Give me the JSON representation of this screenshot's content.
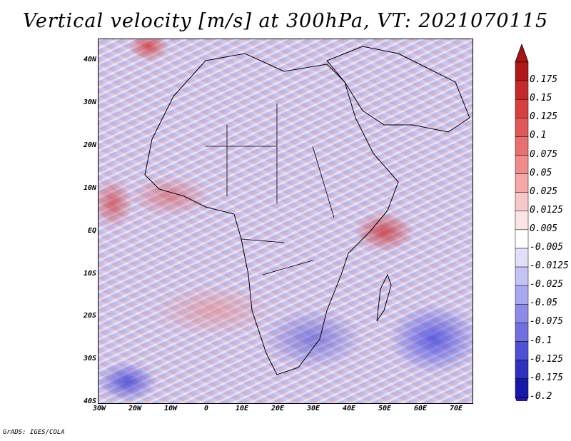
{
  "title": "Vertical velocity [m/s] at 300hPa, VT: 2021070115",
  "footer": "GrADS: IGES/COLA",
  "map": {
    "lat_labels": [
      "40N",
      "30N",
      "20N",
      "10N",
      "EQ",
      "10S",
      "20S",
      "30S",
      "40S"
    ],
    "lon_labels": [
      "30W",
      "20W",
      "10W",
      "0",
      "10E",
      "20E",
      "30E",
      "40E",
      "50E",
      "60E",
      "70E"
    ]
  },
  "colorbar": {
    "levels": [
      {
        "label": "0.175",
        "color": "#b01818"
      },
      {
        "label": "0.15",
        "color": "#c42a2a"
      },
      {
        "label": "0.125",
        "color": "#d84040"
      },
      {
        "label": "0.1",
        "color": "#e05858"
      },
      {
        "label": "0.075",
        "color": "#e87070"
      },
      {
        "label": "0.05",
        "color": "#f08c8c"
      },
      {
        "label": "0.025",
        "color": "#f4a8a8"
      },
      {
        "label": "0.0125",
        "color": "#f8c8c8"
      },
      {
        "label": "0.005",
        "color": "#fce4e4"
      },
      {
        "label": "-0.005",
        "color": "#ffffff"
      },
      {
        "label": "-0.0125",
        "color": "#e0e0f8"
      },
      {
        "label": "-0.025",
        "color": "#c4c4f4"
      },
      {
        "label": "-0.05",
        "color": "#a8a8ee"
      },
      {
        "label": "-0.075",
        "color": "#8c8ce8"
      },
      {
        "label": "-0.1",
        "color": "#7070e0"
      },
      {
        "label": "-0.125",
        "color": "#5050d4"
      },
      {
        "label": "-0.175",
        "color": "#3030c0"
      },
      {
        "label": "-0.2",
        "color": "#1818a8"
      }
    ],
    "top_triangle_color": "#a81414",
    "bottom_triangle_color": "#2a10b0",
    "extra_bottom_color": "#2020b4"
  }
}
